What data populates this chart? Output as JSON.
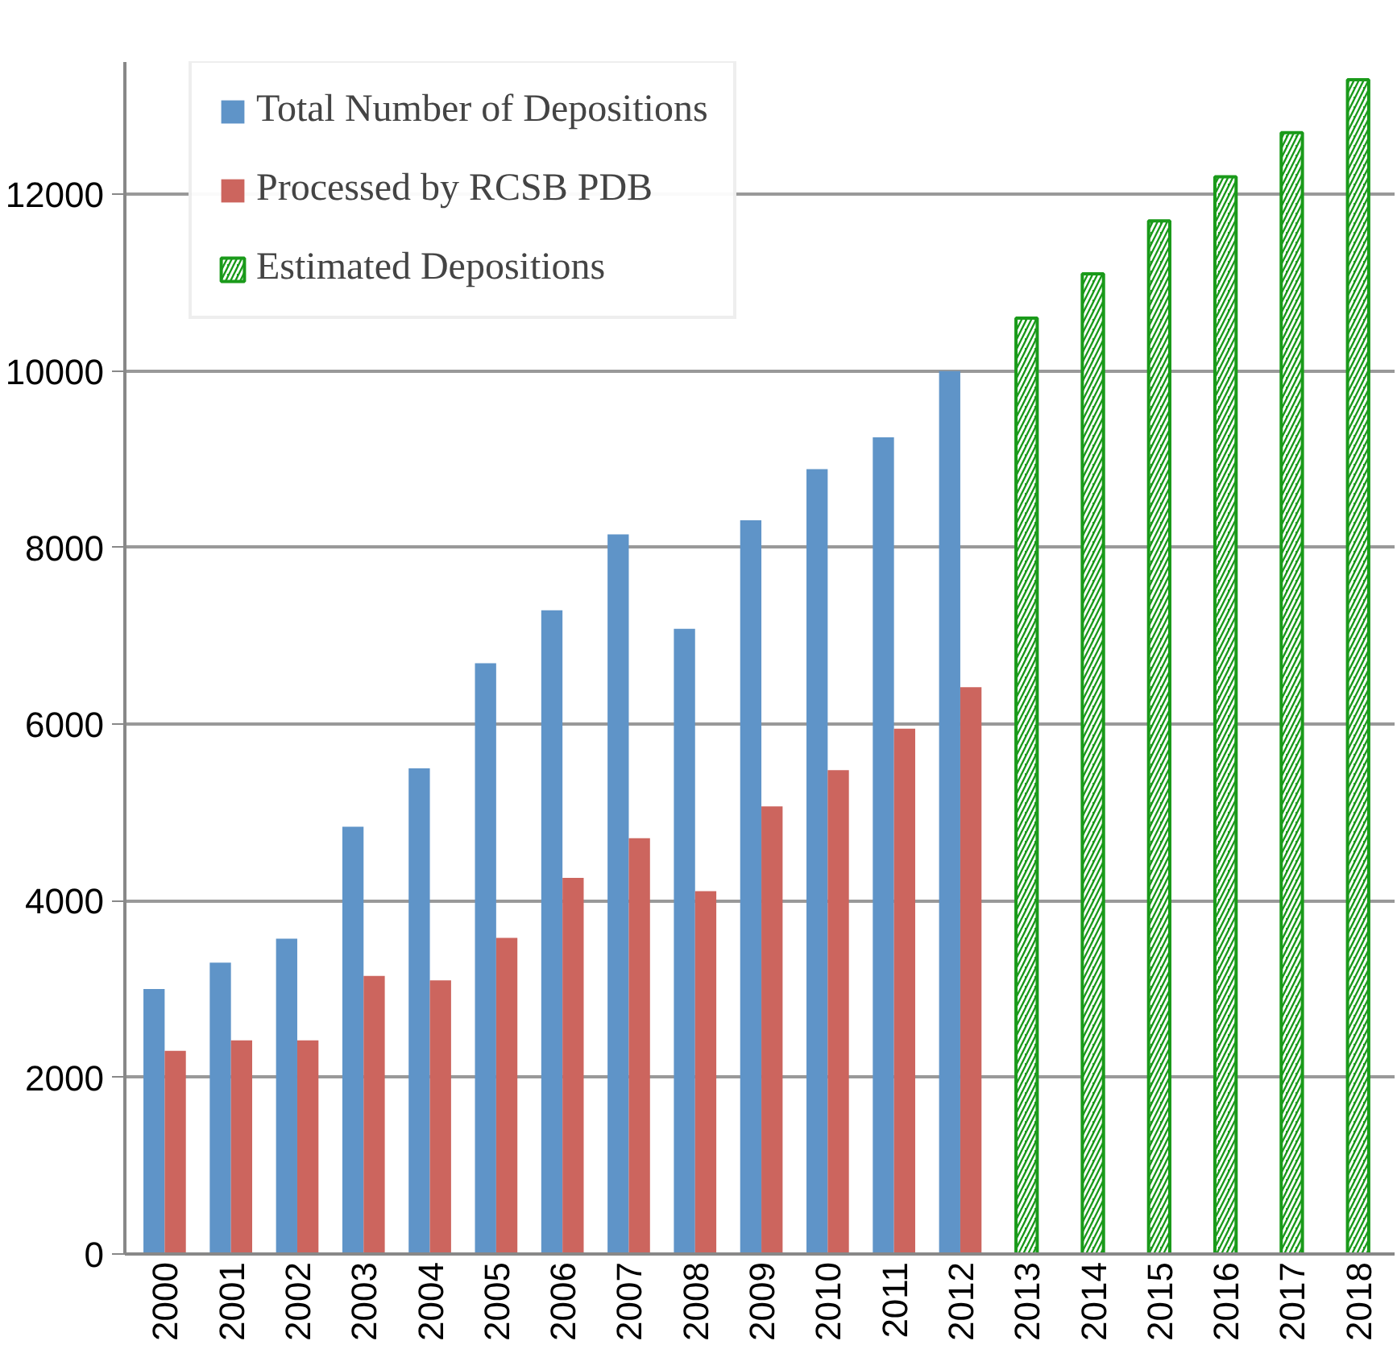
{
  "chart_data": {
    "type": "bar",
    "categories": [
      "2000",
      "2001",
      "2002",
      "2003",
      "2004",
      "2005",
      "2006",
      "2007",
      "2008",
      "2009",
      "2010",
      "2011",
      "2012",
      "2013",
      "2014",
      "2015",
      "2016",
      "2017",
      "2018"
    ],
    "series": [
      {
        "name": "Total Number of Depositions",
        "color": "#5f94c8",
        "values": [
          3000,
          3300,
          3570,
          4840,
          5500,
          6690,
          7290,
          8150,
          7080,
          8310,
          8890,
          9250,
          10000,
          null,
          null,
          null,
          null,
          null,
          null
        ]
      },
      {
        "name": "Processed by RCSB PDB",
        "color": "#cc655e",
        "values": [
          2300,
          2420,
          2420,
          3150,
          3100,
          3580,
          4260,
          4710,
          4110,
          5070,
          5480,
          5950,
          6420,
          null,
          null,
          null,
          null,
          null,
          null
        ]
      },
      {
        "name": "Estimated Depositions",
        "color": "#1a9a1a",
        "values": [
          null,
          null,
          null,
          null,
          null,
          null,
          null,
          null,
          null,
          null,
          null,
          null,
          null,
          10600,
          11100,
          11700,
          12200,
          12700,
          13300
        ]
      }
    ],
    "ylim": [
      0,
      13500
    ],
    "yticks": [
      0,
      2000,
      4000,
      6000,
      8000,
      10000,
      12000
    ],
    "grid": "y",
    "legend": "top left"
  }
}
